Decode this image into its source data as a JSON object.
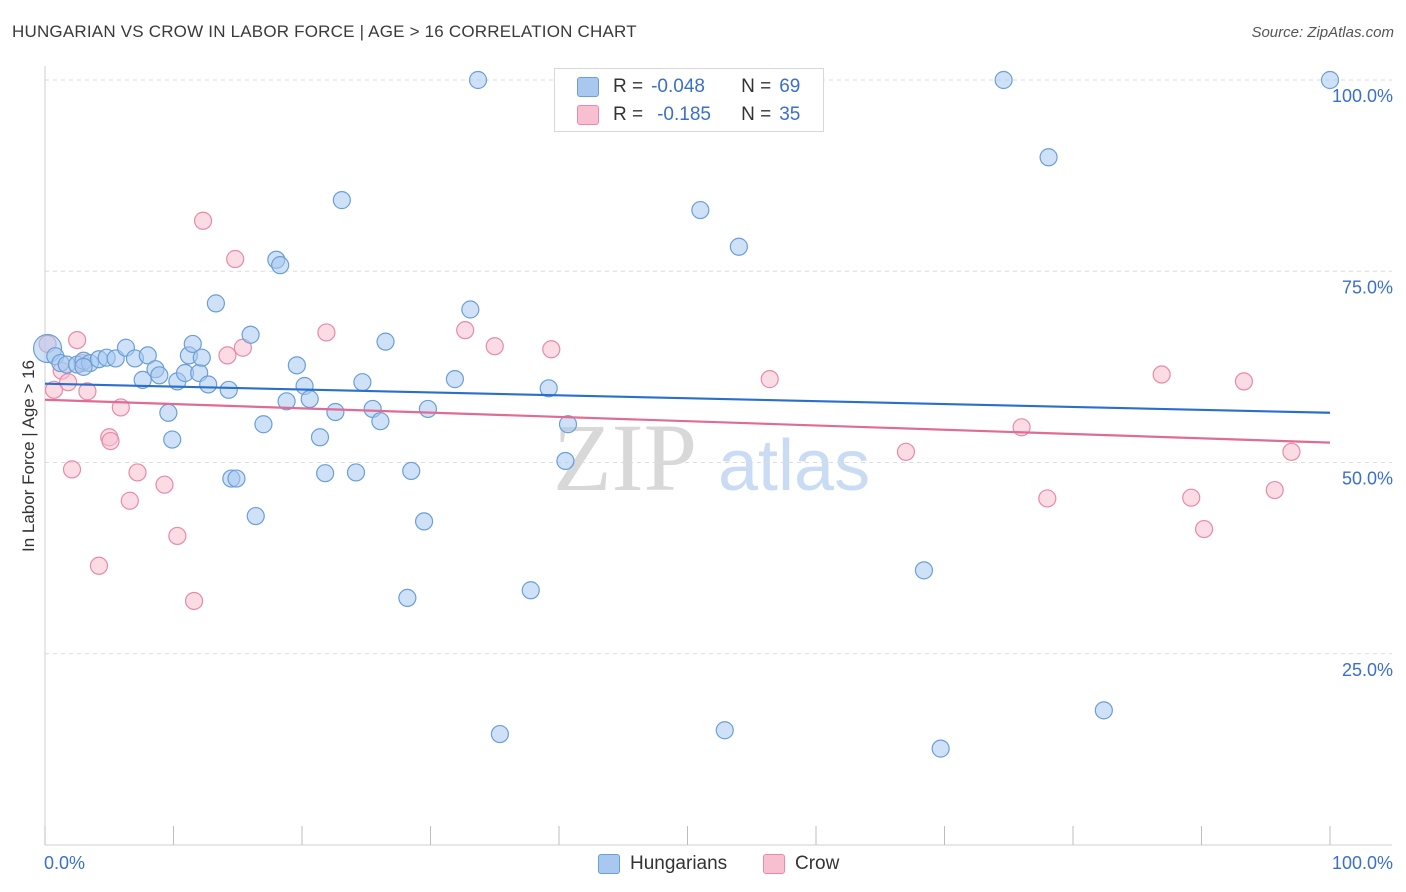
{
  "header": {
    "title": "HUNGARIAN VS CROW IN LABOR FORCE | AGE > 16 CORRELATION CHART",
    "source": "Source: ZipAtlas.com"
  },
  "legend_top": {
    "rows": [
      {
        "r_label": "R =",
        "r_value": "-0.048",
        "n_label": "N =",
        "n_value": "69"
      },
      {
        "r_label": "R =",
        "r_value": "-0.185",
        "n_label": "N =",
        "n_value": "35"
      }
    ]
  },
  "legend_bottom": {
    "hungarians": "Hungarians",
    "crow": "Crow"
  },
  "watermark": {
    "zip": "ZIP",
    "atlas": "atlas"
  },
  "colors": {
    "blue_fill": "#a8c8f0",
    "blue_stroke": "#6a9fd8",
    "blue_line": "#2a6fcc",
    "pink_fill": "#f7bfcf",
    "pink_stroke": "#e98aa8",
    "pink_line": "#e06b93",
    "axis_text": "#3a6fcc"
  },
  "chart_data": {
    "type": "scatter",
    "title": "HUNGARIAN VS CROW IN LABOR FORCE | AGE > 16 CORRELATION CHART",
    "xlabel": "",
    "ylabel": "In Labor Force | Age > 16",
    "xlim": [
      0,
      100
    ],
    "ylim": [
      0,
      102
    ],
    "x_tick_labels": [
      "0.0%",
      "100.0%"
    ],
    "y_ticks": [
      25,
      50,
      75,
      100
    ],
    "y_tick_labels": [
      "25.0%",
      "50.0%",
      "75.0%",
      "100.0%"
    ],
    "grid": "horizontal dashed",
    "series": [
      {
        "name": "Hungarians",
        "r": -0.048,
        "n": 69,
        "trend": {
          "x": [
            0,
            100
          ],
          "y": [
            60.3,
            56.5
          ]
        },
        "points": [
          [
            0.2,
            64.9
          ],
          [
            0.8,
            63.9
          ],
          [
            1.2,
            63.0
          ],
          [
            1.7,
            62.8
          ],
          [
            2.5,
            62.8
          ],
          [
            3.0,
            63.3
          ],
          [
            3.5,
            63.0
          ],
          [
            4.2,
            63.5
          ],
          [
            4.8,
            63.7
          ],
          [
            5.5,
            63.6
          ],
          [
            6.3,
            65.0
          ],
          [
            7.0,
            63.6
          ],
          [
            7.6,
            60.8
          ],
          [
            8.0,
            64.0
          ],
          [
            8.6,
            62.2
          ],
          [
            8.9,
            61.4
          ],
          [
            9.6,
            56.5
          ],
          [
            9.9,
            53.0
          ],
          [
            10.3,
            60.6
          ],
          [
            10.9,
            61.7
          ],
          [
            11.2,
            64.0
          ],
          [
            11.5,
            65.5
          ],
          [
            12.0,
            61.7
          ],
          [
            12.2,
            63.7
          ],
          [
            12.7,
            60.2
          ],
          [
            13.3,
            70.8
          ],
          [
            14.3,
            59.5
          ],
          [
            14.5,
            47.9
          ],
          [
            14.9,
            47.9
          ],
          [
            16.4,
            43.0
          ],
          [
            17.0,
            55.0
          ],
          [
            18.0,
            76.5
          ],
          [
            18.3,
            75.8
          ],
          [
            18.8,
            58.0
          ],
          [
            19.6,
            62.7
          ],
          [
            20.2,
            60.0
          ],
          [
            20.6,
            58.3
          ],
          [
            21.4,
            53.3
          ],
          [
            21.8,
            48.6
          ],
          [
            22.6,
            56.6
          ],
          [
            23.1,
            84.3
          ],
          [
            24.2,
            48.7
          ],
          [
            24.7,
            60.5
          ],
          [
            25.5,
            57.0
          ],
          [
            26.1,
            55.4
          ],
          [
            26.5,
            65.8
          ],
          [
            28.2,
            32.3
          ],
          [
            28.5,
            48.9
          ],
          [
            29.5,
            42.3
          ],
          [
            29.8,
            57.0
          ],
          [
            31.9,
            60.9
          ],
          [
            33.1,
            70.0
          ],
          [
            33.7,
            100.0
          ],
          [
            35.4,
            14.5
          ],
          [
            37.8,
            33.3
          ],
          [
            39.2,
            59.7
          ],
          [
            40.5,
            50.2
          ],
          [
            40.7,
            55.0
          ],
          [
            51.0,
            83.0
          ],
          [
            52.9,
            15.0
          ],
          [
            54.0,
            78.2
          ],
          [
            68.4,
            35.9
          ],
          [
            69.7,
            12.6
          ],
          [
            74.6,
            100.0
          ],
          [
            78.1,
            89.9
          ],
          [
            82.4,
            17.6
          ],
          [
            100.0,
            100.0
          ],
          [
            16.0,
            66.7
          ],
          [
            3.0,
            62.5
          ]
        ]
      },
      {
        "name": "Crow",
        "r": -0.185,
        "n": 35,
        "trend": {
          "x": [
            0,
            100
          ],
          "y": [
            58.2,
            52.6
          ]
        },
        "points": [
          [
            0.2,
            65.5
          ],
          [
            0.7,
            59.5
          ],
          [
            1.3,
            62.0
          ],
          [
            1.8,
            60.5
          ],
          [
            2.1,
            49.1
          ],
          [
            2.5,
            66.0
          ],
          [
            2.9,
            63.0
          ],
          [
            3.3,
            59.3
          ],
          [
            4.2,
            36.5
          ],
          [
            5.0,
            53.3
          ],
          [
            5.1,
            52.8
          ],
          [
            5.9,
            57.2
          ],
          [
            6.6,
            45.0
          ],
          [
            7.2,
            48.7
          ],
          [
            9.3,
            47.1
          ],
          [
            10.3,
            40.4
          ],
          [
            11.6,
            31.9
          ],
          [
            12.3,
            81.6
          ],
          [
            14.2,
            64.0
          ],
          [
            14.8,
            76.6
          ],
          [
            15.4,
            65.0
          ],
          [
            21.9,
            67.0
          ],
          [
            32.7,
            67.3
          ],
          [
            35.0,
            65.2
          ],
          [
            39.4,
            64.8
          ],
          [
            56.4,
            60.9
          ],
          [
            67.0,
            51.4
          ],
          [
            76.0,
            54.6
          ],
          [
            78.0,
            45.3
          ],
          [
            86.9,
            61.5
          ],
          [
            89.2,
            45.4
          ],
          [
            90.2,
            41.3
          ],
          [
            93.3,
            60.6
          ],
          [
            95.7,
            46.4
          ],
          [
            97.0,
            51.4
          ]
        ]
      }
    ]
  }
}
